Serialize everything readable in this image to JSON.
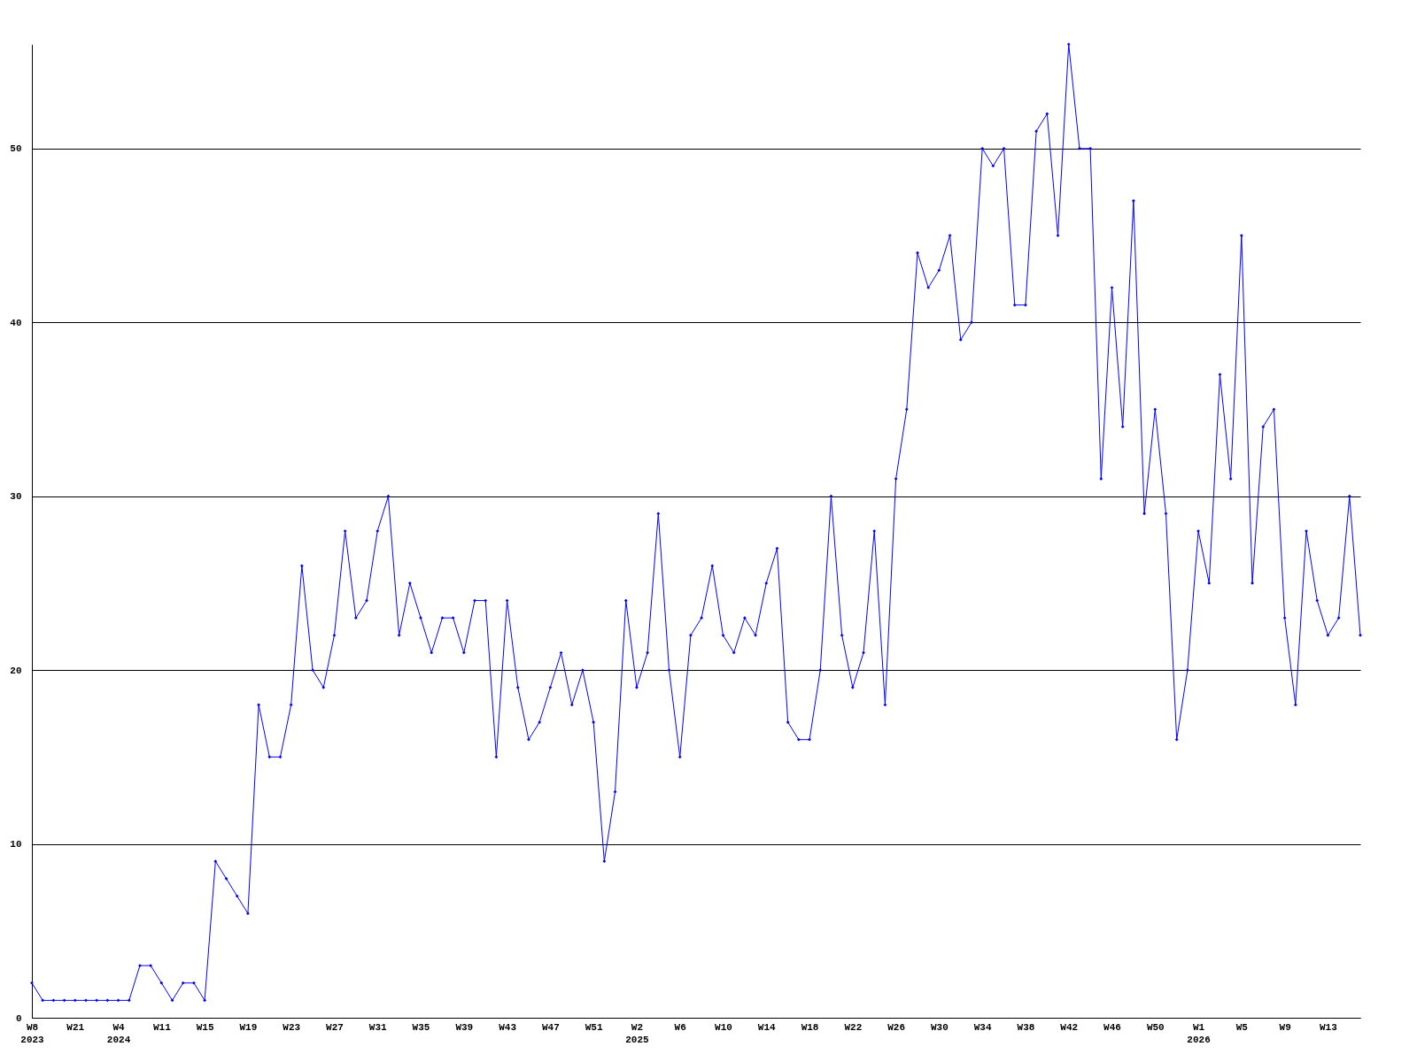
{
  "chart_data": {
    "type": "line",
    "categories": [
      "W8\n2023",
      null,
      null,
      null,
      "W21",
      null,
      null,
      null,
      "W4\n2024",
      null,
      null,
      null,
      "W11",
      null,
      null,
      null,
      "W15",
      null,
      null,
      null,
      "W19",
      null,
      null,
      null,
      "W23",
      null,
      null,
      null,
      "W27",
      null,
      null,
      null,
      "W31",
      null,
      null,
      null,
      "W35",
      null,
      null,
      null,
      "W39",
      null,
      null,
      null,
      "W43",
      null,
      null,
      null,
      "W47",
      null,
      null,
      null,
      "W51",
      null,
      null,
      null,
      "W2\n2025",
      null,
      null,
      null,
      "W6",
      null,
      null,
      null,
      "W10",
      null,
      null,
      null,
      "W14",
      null,
      null,
      null,
      "W18",
      null,
      null,
      null,
      "W22",
      null,
      null,
      null,
      "W26",
      null,
      null,
      null,
      "W30",
      null,
      null,
      null,
      "W34",
      null,
      null,
      null,
      "W38",
      null,
      null,
      null,
      "W42",
      null,
      null,
      null,
      "W46",
      null,
      null,
      null,
      "W50",
      null,
      null,
      null,
      "W1\n2026",
      null,
      null,
      null,
      "W5",
      null,
      null,
      null,
      "W9",
      null,
      null,
      null,
      "W13",
      null,
      null,
      null
    ],
    "series": [
      {
        "color": "#0000ff",
        "values": [
          2,
          1,
          1,
          1,
          1,
          1,
          1,
          1,
          1,
          1,
          3,
          3,
          2,
          1,
          2,
          2,
          1,
          9,
          8,
          7,
          6,
          18,
          15,
          15,
          18,
          26,
          20,
          19,
          22,
          28,
          23,
          24,
          28,
          30,
          22,
          25,
          23,
          21,
          23,
          23,
          21,
          24,
          24,
          15,
          24,
          19,
          16,
          17,
          19,
          21,
          18,
          20,
          17,
          9,
          13,
          24,
          19,
          21,
          29,
          20,
          15,
          22,
          23,
          26,
          22,
          21,
          23,
          22,
          25,
          27,
          17,
          16,
          16,
          20,
          30,
          22,
          19,
          21,
          28,
          18,
          31,
          35,
          44,
          42,
          43,
          45,
          39,
          40,
          50,
          49,
          50,
          41,
          41,
          51,
          52,
          45,
          56,
          50,
          50,
          31,
          42,
          34,
          47,
          29,
          35,
          29,
          16,
          20,
          28,
          25,
          37,
          31,
          45,
          25,
          34,
          35,
          23,
          18,
          28,
          24,
          22,
          23,
          30,
          22
        ]
      }
    ],
    "ylim": [
      0,
      56
    ],
    "yticks": [
      0,
      10,
      20,
      30,
      40,
      50
    ],
    "grid": "y",
    "marker": "diamond",
    "line_style": "solid"
  }
}
